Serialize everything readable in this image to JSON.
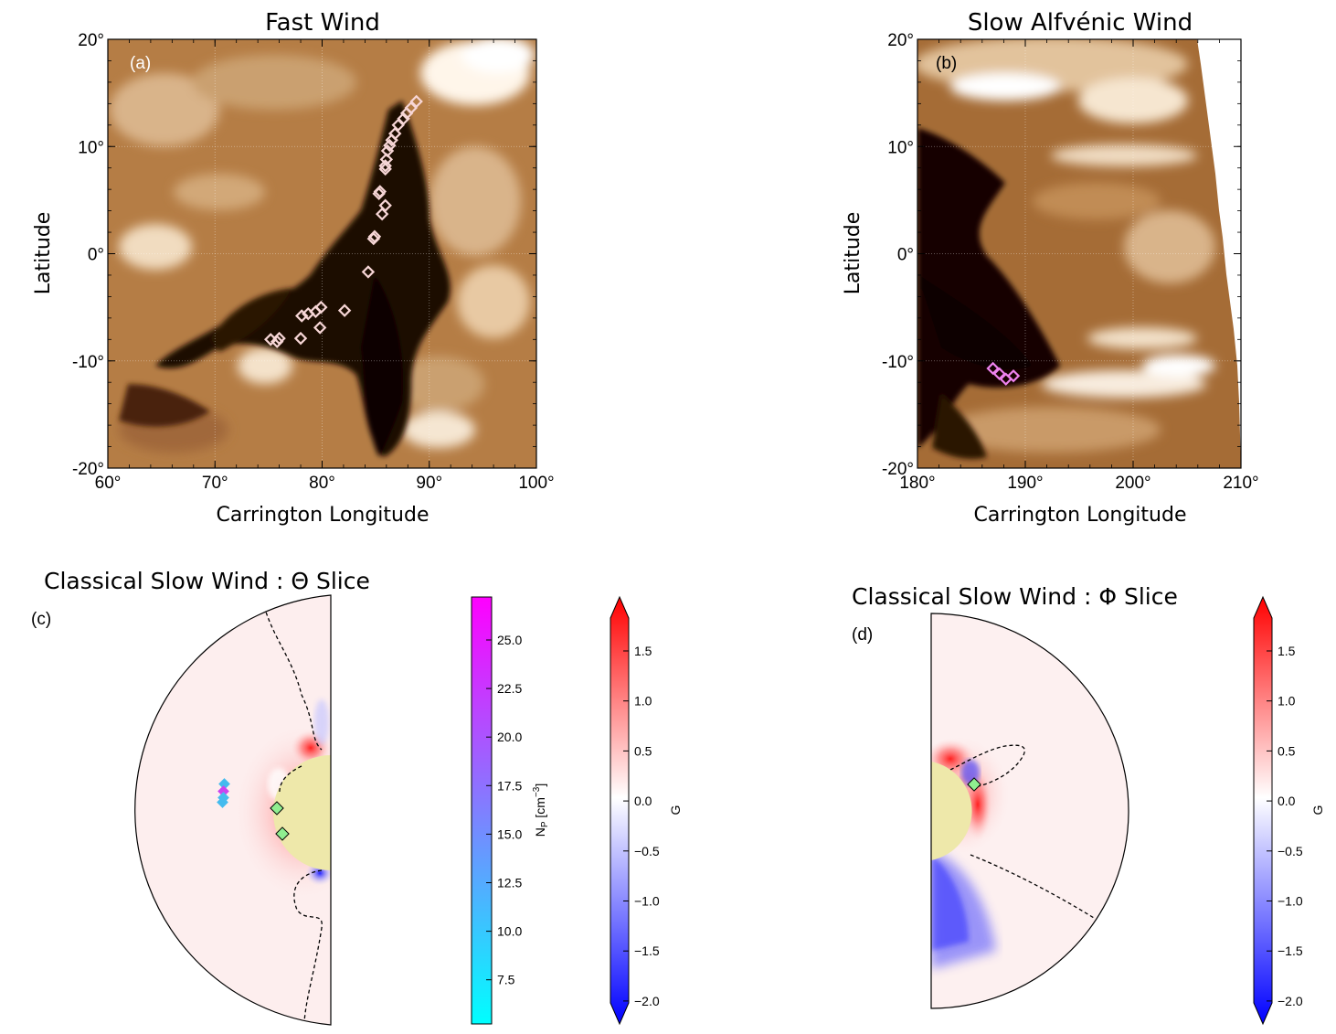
{
  "panels": {
    "a": {
      "title": "Fast Wind",
      "letter": "(a)",
      "xlabel": "Carrington Longitude",
      "ylabel": "Latitude",
      "xticks": [
        "60°",
        "70°",
        "80°",
        "90°",
        "100°"
      ],
      "yticks": [
        "20°",
        "10°",
        "0°",
        "-10°",
        "-20°"
      ],
      "xlim": [
        60,
        100
      ],
      "ylim": [
        -20,
        20
      ],
      "marker_color": "#f7d6d6",
      "markers": [
        [
          88.8,
          14.2
        ],
        [
          88.3,
          13.6
        ],
        [
          87.9,
          13.1
        ],
        [
          87.6,
          12.6
        ],
        [
          87.1,
          12.0
        ],
        [
          86.8,
          11.2
        ],
        [
          86.5,
          10.6
        ],
        [
          86.3,
          10.1
        ],
        [
          86.1,
          9.6
        ],
        [
          86.0,
          8.8
        ],
        [
          85.9,
          8.2
        ],
        [
          85.9,
          7.9
        ],
        [
          85.4,
          5.8
        ],
        [
          85.3,
          5.6
        ],
        [
          85.9,
          4.5
        ],
        [
          85.6,
          3.7
        ],
        [
          84.9,
          1.6
        ],
        [
          84.8,
          1.4
        ],
        [
          84.3,
          -1.7
        ],
        [
          82.1,
          -5.3
        ],
        [
          79.9,
          -5.0
        ],
        [
          79.4,
          -5.4
        ],
        [
          78.7,
          -5.6
        ],
        [
          78.1,
          -5.8
        ],
        [
          79.8,
          -6.9
        ],
        [
          78.0,
          -7.9
        ],
        [
          76.0,
          -7.9
        ],
        [
          75.8,
          -8.2
        ],
        [
          75.2,
          -8.0
        ]
      ]
    },
    "b": {
      "title": "Slow Alfvénic Wind",
      "letter": "(b)",
      "xlabel": "Carrington Longitude",
      "ylabel": "Latitude",
      "xticks": [
        "180°",
        "190°",
        "200°",
        "210°"
      ],
      "yticks": [
        "20°",
        "10°",
        "0°",
        "-10°",
        "-20°"
      ],
      "xlim": [
        180,
        210
      ],
      "ylim": [
        -20,
        20
      ],
      "marker_color": "#ee82ee",
      "markers": [
        [
          187.0,
          -10.7
        ],
        [
          187.6,
          -11.2
        ],
        [
          188.2,
          -11.7
        ],
        [
          188.9,
          -11.4
        ]
      ]
    },
    "c": {
      "title": "Classical Slow Wind : Θ Slice",
      "letter": "(c)",
      "density_colorbar": {
        "label": "N_P [cm^-3]",
        "ticks": [
          "25.0",
          "22.5",
          "20.0",
          "17.5",
          "15.0",
          "12.5",
          "10.0",
          "7.5"
        ],
        "colors": [
          "#00ffff",
          "#ff00ff"
        ]
      },
      "field_colorbar": {
        "label": "G",
        "ticks": [
          "1.5",
          "1.0",
          "0.5",
          "0.0",
          "−0.5",
          "−1.0",
          "−1.5",
          "−2.0"
        ],
        "colors": [
          "#0000ff",
          "#ffffff",
          "#ff0000"
        ]
      },
      "sun_color": "#eee8aa",
      "marker_color": "#90ee90"
    },
    "d": {
      "title": "Classical Slow Wind : Φ Slice",
      "letter": "(d)",
      "field_colorbar": {
        "label": "G",
        "ticks": [
          "1.5",
          "1.0",
          "0.5",
          "0.0",
          "−0.5",
          "−1.0",
          "−1.5",
          "−2.0"
        ],
        "colors": [
          "#0000ff",
          "#ffffff",
          "#ff0000"
        ]
      },
      "sun_color": "#eee8aa",
      "marker_color": "#90ee90"
    }
  }
}
